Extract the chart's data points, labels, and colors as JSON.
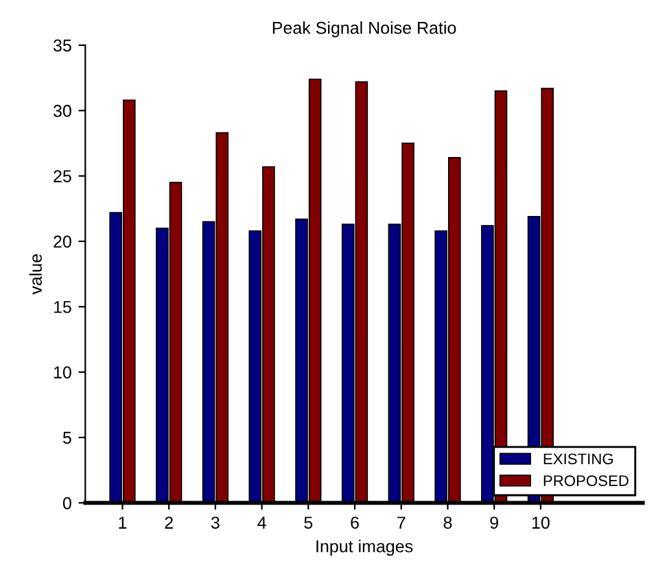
{
  "chart_data": {
    "type": "bar",
    "title": "Peak Signal Noise Ratio",
    "xlabel": "Input images",
    "ylabel": "value",
    "categories": [
      "1",
      "2",
      "3",
      "4",
      "5",
      "6",
      "7",
      "8",
      "9",
      "10"
    ],
    "series": [
      {
        "name": "EXISTING",
        "color": "#000080",
        "values": [
          22.2,
          21.0,
          21.5,
          20.8,
          21.7,
          21.3,
          21.3,
          20.8,
          21.2,
          21.9
        ]
      },
      {
        "name": "PROPOSED",
        "color": "#800000",
        "values": [
          30.8,
          24.5,
          28.3,
          25.7,
          32.4,
          32.2,
          27.5,
          26.4,
          31.5,
          31.7
        ]
      }
    ],
    "ylim": [
      0,
      35
    ],
    "yticks": [
      0,
      5,
      10,
      15,
      20,
      25,
      30,
      35
    ],
    "grid": false,
    "legend": "bottom right"
  }
}
